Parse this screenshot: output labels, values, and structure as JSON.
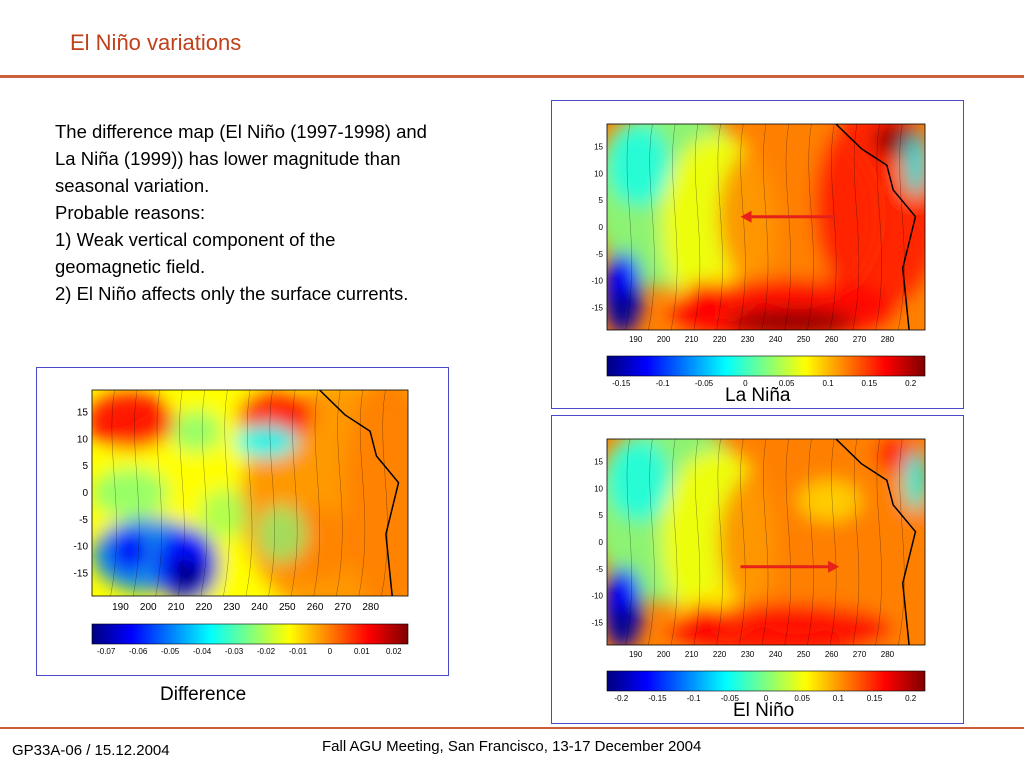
{
  "slide": {
    "title": "El Niño variations",
    "body": [
      "The difference map (El Niño (1997-1998) and La Niña (1999)) has lower magnitude than seasonal variation.",
      "Probable reasons:",
      "1) Weak vertical component of the geomagnetic field.",
      "2) El Niño affects only the surface currents."
    ],
    "footer_left": "GP33A-06 / 15.12.2004",
    "footer_center": "Fall AGU Meeting, San Francisco, 13-17 December 2004"
  },
  "maps": {
    "difference": {
      "caption": "Difference",
      "x_ticks": [
        "190",
        "200",
        "210",
        "220",
        "230",
        "240",
        "250",
        "260",
        "270",
        "280"
      ],
      "y_ticks": [
        "15",
        "10",
        "5",
        "0",
        "-5",
        "-10",
        "-15"
      ],
      "colorbar_ticks": [
        "-0.07",
        "-0.06",
        "-0.05",
        "-0.04",
        "-0.03",
        "-0.02",
        "-0.01",
        "0",
        "0.01",
        "0.02"
      ]
    },
    "la_nina": {
      "caption": "La Niña",
      "x_ticks": [
        "190",
        "200",
        "210",
        "220",
        "230",
        "240",
        "250",
        "260",
        "270",
        "280"
      ],
      "y_ticks": [
        "15",
        "10",
        "5",
        "0",
        "-5",
        "-10",
        "-15"
      ],
      "colorbar_ticks": [
        "-0.15",
        "-0.1",
        "-0.05",
        "0",
        "0.05",
        "0.1",
        "0.15",
        "0.2"
      ],
      "arrow_direction": "west"
    },
    "el_nino": {
      "caption": "El Niño",
      "x_ticks": [
        "190",
        "200",
        "210",
        "220",
        "230",
        "240",
        "250",
        "260",
        "270",
        "280"
      ],
      "y_ticks": [
        "15",
        "10",
        "5",
        "0",
        "-5",
        "-10",
        "-15"
      ],
      "colorbar_ticks": [
        "-0.2",
        "-0.15",
        "-0.1",
        "-0.05",
        "0",
        "0.05",
        "0.1",
        "0.15",
        "0.2"
      ],
      "arrow_direction": "east"
    }
  },
  "colors": {
    "title": "#c0401a",
    "rule": "#c9603a",
    "frame": "#4a4ac8",
    "arrow": "#e8201a",
    "jet": [
      "#00007f",
      "#0000ff",
      "#0080ff",
      "#00ffff",
      "#80ff80",
      "#ffff00",
      "#ff8000",
      "#ff0000",
      "#7f0000"
    ]
  }
}
